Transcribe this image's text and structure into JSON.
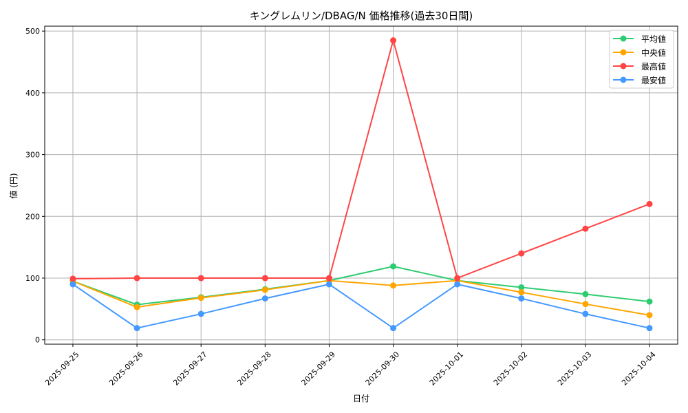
{
  "chart_data": {
    "type": "line",
    "title": "キングレムリン/DBAG/N 価格推移(過去30日間)",
    "xlabel": "日付",
    "ylabel": "値 (円)",
    "categories": [
      "2025-09-25",
      "2025-09-26",
      "2025-09-27",
      "2025-09-28",
      "2025-09-29",
      "2025-09-30",
      "2025-10-01",
      "2025-10-02",
      "2025-10-03",
      "2025-10-04"
    ],
    "ylim": [
      -7,
      508
    ],
    "yticks": [
      0,
      100,
      200,
      300,
      400,
      500
    ],
    "grid": true,
    "legend_placement": "top-right",
    "series": [
      {
        "name": "平均値",
        "color": "#2ecc71",
        "values": [
          95,
          57,
          69,
          82,
          96,
          119,
          96,
          85,
          74,
          62
        ]
      },
      {
        "name": "中央値",
        "color": "#ffa500",
        "values": [
          95,
          53,
          68,
          81,
          96,
          88,
          96,
          77,
          58,
          40
        ]
      },
      {
        "name": "最高値",
        "color": "#ff4444",
        "values": [
          99,
          100,
          100,
          100,
          100,
          485,
          100,
          140,
          180,
          220
        ]
      },
      {
        "name": "最安値",
        "color": "#4499ff",
        "values": [
          90,
          19,
          42,
          67,
          90,
          19,
          90,
          67,
          42,
          19
        ]
      }
    ]
  }
}
